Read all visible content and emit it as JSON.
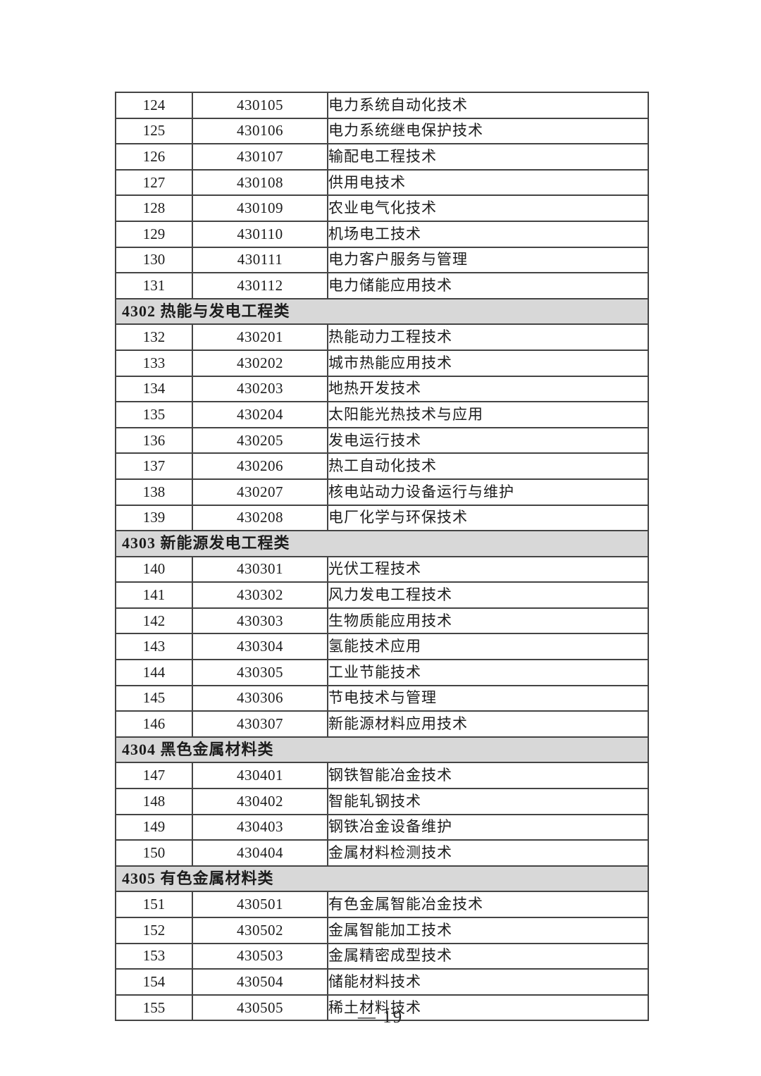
{
  "page": {
    "number_label": "— 19"
  },
  "colors": {
    "section_header_bg": "#d8d8d8",
    "table_border": "#444444",
    "text": "#1c1c1c",
    "page_bg": "#ffffff"
  },
  "table": {
    "rows": [
      {
        "type": "item",
        "seq": "124",
        "code": "430105",
        "name": "电力系统自动化技术"
      },
      {
        "type": "item",
        "seq": "125",
        "code": "430106",
        "name": "电力系统继电保护技术"
      },
      {
        "type": "item",
        "seq": "126",
        "code": "430107",
        "name": "输配电工程技术"
      },
      {
        "type": "item",
        "seq": "127",
        "code": "430108",
        "name": "供用电技术"
      },
      {
        "type": "item",
        "seq": "128",
        "code": "430109",
        "name": "农业电气化技术"
      },
      {
        "type": "item",
        "seq": "129",
        "code": "430110",
        "name": "机场电工技术"
      },
      {
        "type": "item",
        "seq": "130",
        "code": "430111",
        "name": "电力客户服务与管理"
      },
      {
        "type": "item",
        "seq": "131",
        "code": "430112",
        "name": "电力储能应用技术"
      },
      {
        "type": "section",
        "label": "4302 热能与发电工程类"
      },
      {
        "type": "item",
        "seq": "132",
        "code": "430201",
        "name": "热能动力工程技术"
      },
      {
        "type": "item",
        "seq": "133",
        "code": "430202",
        "name": "城市热能应用技术"
      },
      {
        "type": "item",
        "seq": "134",
        "code": "430203",
        "name": "地热开发技术"
      },
      {
        "type": "item",
        "seq": "135",
        "code": "430204",
        "name": "太阳能光热技术与应用"
      },
      {
        "type": "item",
        "seq": "136",
        "code": "430205",
        "name": "发电运行技术"
      },
      {
        "type": "item",
        "seq": "137",
        "code": "430206",
        "name": "热工自动化技术"
      },
      {
        "type": "item",
        "seq": "138",
        "code": "430207",
        "name": "核电站动力设备运行与维护"
      },
      {
        "type": "item",
        "seq": "139",
        "code": "430208",
        "name": "电厂化学与环保技术"
      },
      {
        "type": "section",
        "label": "4303 新能源发电工程类"
      },
      {
        "type": "item",
        "seq": "140",
        "code": "430301",
        "name": "光伏工程技术"
      },
      {
        "type": "item",
        "seq": "141",
        "code": "430302",
        "name": "风力发电工程技术"
      },
      {
        "type": "item",
        "seq": "142",
        "code": "430303",
        "name": "生物质能应用技术"
      },
      {
        "type": "item",
        "seq": "143",
        "code": "430304",
        "name": "氢能技术应用"
      },
      {
        "type": "item",
        "seq": "144",
        "code": "430305",
        "name": "工业节能技术"
      },
      {
        "type": "item",
        "seq": "145",
        "code": "430306",
        "name": "节电技术与管理"
      },
      {
        "type": "item",
        "seq": "146",
        "code": "430307",
        "name": "新能源材料应用技术"
      },
      {
        "type": "section",
        "label": "4304 黑色金属材料类"
      },
      {
        "type": "item",
        "seq": "147",
        "code": "430401",
        "name": "钢铁智能冶金技术"
      },
      {
        "type": "item",
        "seq": "148",
        "code": "430402",
        "name": "智能轧钢技术"
      },
      {
        "type": "item",
        "seq": "149",
        "code": "430403",
        "name": "钢铁冶金设备维护"
      },
      {
        "type": "item",
        "seq": "150",
        "code": "430404",
        "name": "金属材料检测技术"
      },
      {
        "type": "section",
        "label": "4305 有色金属材料类"
      },
      {
        "type": "item",
        "seq": "151",
        "code": "430501",
        "name": "有色金属智能冶金技术"
      },
      {
        "type": "item",
        "seq": "152",
        "code": "430502",
        "name": "金属智能加工技术"
      },
      {
        "type": "item",
        "seq": "153",
        "code": "430503",
        "name": "金属精密成型技术"
      },
      {
        "type": "item",
        "seq": "154",
        "code": "430504",
        "name": "储能材料技术"
      },
      {
        "type": "item",
        "seq": "155",
        "code": "430505",
        "name": "稀土材料技术"
      }
    ]
  }
}
